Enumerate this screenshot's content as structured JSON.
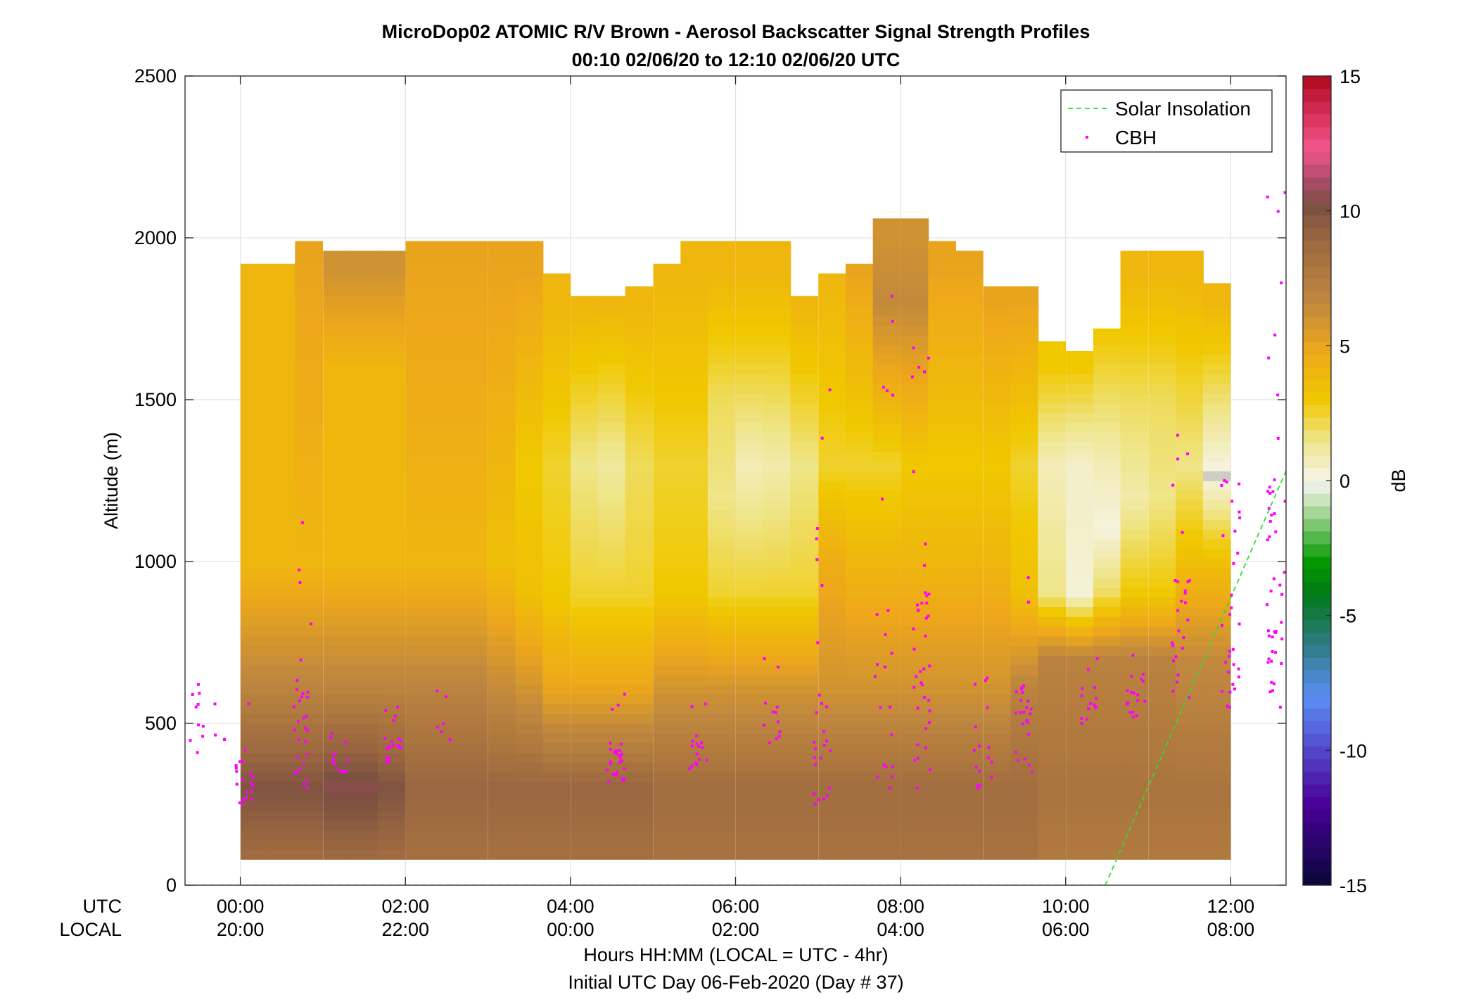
{
  "chart_data": {
    "type": "heatmap",
    "title": "MicroDop02 ATOMIC R/V Brown - Aerosol Backscatter Signal Strength Profiles",
    "subtitle": "00:10 02/06/20 to 12:10 02/06/20  UTC",
    "ylabel": "Altitude (m)",
    "xlabel": "Hours HH:MM  (LOCAL = UTC - 4hr)",
    "xlabel2": "Initial UTC Day 06-Feb-2020 (Day # 37)",
    "x_row_labels": [
      "UTC",
      "LOCAL"
    ],
    "ylim": [
      0,
      2500
    ],
    "xlim_hours_utc": [
      -0.67,
      12.67
    ],
    "yticks": [
      0,
      500,
      1000,
      1500,
      2000,
      2500
    ],
    "xticks_utc": [
      "00:00",
      "02:00",
      "04:00",
      "06:00",
      "08:00",
      "10:00",
      "12:00"
    ],
    "xticks_local": [
      "20:00",
      "22:00",
      "00:00",
      "02:00",
      "04:00",
      "06:00",
      "08:00"
    ],
    "grid": true,
    "legend_position": "top-right",
    "legend": [
      {
        "label": "Solar Insolation",
        "color": "#33dd33",
        "style": "dashed"
      },
      {
        "label": "CBH",
        "color": "#ff00ff",
        "style": "dot"
      }
    ],
    "colorbar": {
      "label": "dB",
      "range": [
        -15,
        15
      ],
      "ticks": [
        "15",
        "10",
        "5",
        "0",
        "-5",
        "-10",
        "-15"
      ]
    },
    "columns": [
      {
        "t": 0.17,
        "top": 1920,
        "profile": [
          [
            0,
            8
          ],
          [
            300,
            10
          ],
          [
            600,
            7
          ],
          [
            1000,
            4
          ],
          [
            1900,
            4
          ]
        ]
      },
      {
        "t": 0.5,
        "top": 1920,
        "profile": [
          [
            0,
            8
          ],
          [
            300,
            10
          ],
          [
            600,
            7
          ],
          [
            1000,
            4
          ],
          [
            1900,
            4
          ]
        ]
      },
      {
        "t": 0.83,
        "top": 1990,
        "profile": [
          [
            0,
            8
          ],
          [
            300,
            10
          ],
          [
            600,
            7
          ],
          [
            1000,
            4
          ],
          [
            1900,
            5
          ]
        ]
      },
      {
        "t": 1.17,
        "top": 1960,
        "profile": [
          [
            0,
            8
          ],
          [
            300,
            10.5
          ],
          [
            600,
            7
          ],
          [
            1000,
            4
          ],
          [
            1600,
            4
          ],
          [
            1900,
            6
          ]
        ]
      },
      {
        "t": 1.5,
        "top": 1960,
        "profile": [
          [
            0,
            8
          ],
          [
            300,
            10.5
          ],
          [
            600,
            7
          ],
          [
            1000,
            4
          ],
          [
            1600,
            4
          ],
          [
            1900,
            6
          ]
        ]
      },
      {
        "t": 1.83,
        "top": 1960,
        "profile": [
          [
            0,
            8
          ],
          [
            300,
            10
          ],
          [
            600,
            7
          ],
          [
            1000,
            4
          ],
          [
            1600,
            4
          ],
          [
            1900,
            6
          ]
        ]
      },
      {
        "t": 2.17,
        "top": 1990,
        "profile": [
          [
            0,
            8
          ],
          [
            300,
            9
          ],
          [
            600,
            7
          ],
          [
            1000,
            4
          ],
          [
            1900,
            5
          ]
        ]
      },
      {
        "t": 2.5,
        "top": 1990,
        "profile": [
          [
            0,
            8
          ],
          [
            300,
            9
          ],
          [
            600,
            7
          ],
          [
            1000,
            4
          ],
          [
            1900,
            5
          ]
        ]
      },
      {
        "t": 2.83,
        "top": 1990,
        "profile": [
          [
            0,
            8
          ],
          [
            300,
            9
          ],
          [
            600,
            7
          ],
          [
            1000,
            4
          ],
          [
            1900,
            5
          ]
        ]
      },
      {
        "t": 3.17,
        "top": 1990,
        "profile": [
          [
            0,
            8
          ],
          [
            300,
            9
          ],
          [
            600,
            6.5
          ],
          [
            1000,
            3.5
          ],
          [
            1900,
            5
          ]
        ]
      },
      {
        "t": 3.5,
        "top": 1990,
        "profile": [
          [
            0,
            8
          ],
          [
            300,
            9
          ],
          [
            600,
            6
          ],
          [
            900,
            3.5
          ],
          [
            1300,
            3
          ],
          [
            1900,
            5
          ]
        ]
      },
      {
        "t": 3.83,
        "top": 1890,
        "profile": [
          [
            0,
            8
          ],
          [
            300,
            9
          ],
          [
            600,
            5
          ],
          [
            900,
            3
          ],
          [
            1300,
            2.5
          ],
          [
            1800,
            4
          ]
        ]
      },
      {
        "t": 4.17,
        "top": 1820,
        "profile": [
          [
            0,
            8
          ],
          [
            300,
            9
          ],
          [
            600,
            5
          ],
          [
            900,
            2.5
          ],
          [
            1300,
            1.5
          ],
          [
            1800,
            4
          ]
        ]
      },
      {
        "t": 4.5,
        "top": 1820,
        "profile": [
          [
            0,
            8
          ],
          [
            300,
            9
          ],
          [
            600,
            5
          ],
          [
            900,
            2.5
          ],
          [
            1300,
            1.2
          ],
          [
            1800,
            4
          ]
        ]
      },
      {
        "t": 4.83,
        "top": 1850,
        "profile": [
          [
            0,
            8
          ],
          [
            300,
            9
          ],
          [
            600,
            5
          ],
          [
            900,
            2.5
          ],
          [
            1300,
            2
          ],
          [
            1800,
            4
          ]
        ]
      },
      {
        "t": 5.17,
        "top": 1920,
        "profile": [
          [
            0,
            8
          ],
          [
            300,
            8.5
          ],
          [
            600,
            6
          ],
          [
            900,
            3
          ],
          [
            1300,
            2.5
          ],
          [
            1900,
            4
          ]
        ]
      },
      {
        "t": 5.5,
        "top": 1990,
        "profile": [
          [
            0,
            8
          ],
          [
            300,
            8.5
          ],
          [
            600,
            6
          ],
          [
            900,
            3
          ],
          [
            1300,
            2.5
          ],
          [
            1900,
            4
          ]
        ]
      },
      {
        "t": 5.83,
        "top": 1990,
        "profile": [
          [
            0,
            8
          ],
          [
            300,
            8.5
          ],
          [
            600,
            6
          ],
          [
            900,
            2.5
          ],
          [
            1200,
            1.5
          ],
          [
            1500,
            2
          ],
          [
            1900,
            4
          ]
        ]
      },
      {
        "t": 6.17,
        "top": 1990,
        "profile": [
          [
            0,
            8
          ],
          [
            300,
            8.5
          ],
          [
            600,
            6
          ],
          [
            900,
            2.5
          ],
          [
            1300,
            0.8
          ],
          [
            1600,
            2.5
          ],
          [
            1900,
            4
          ]
        ]
      },
      {
        "t": 6.5,
        "top": 1990,
        "profile": [
          [
            0,
            8
          ],
          [
            300,
            8.5
          ],
          [
            600,
            6
          ],
          [
            900,
            2.5
          ],
          [
            1300,
            1
          ],
          [
            1600,
            2.5
          ],
          [
            1900,
            4
          ]
        ]
      },
      {
        "t": 6.83,
        "top": 1820,
        "profile": [
          [
            0,
            8
          ],
          [
            300,
            8.5
          ],
          [
            600,
            6
          ],
          [
            900,
            2.5
          ],
          [
            1300,
            1.5
          ],
          [
            1800,
            4
          ]
        ]
      },
      {
        "t": 7.17,
        "top": 1890,
        "profile": [
          [
            0,
            8
          ],
          [
            300,
            8.5
          ],
          [
            600,
            6
          ],
          [
            1000,
            4.5
          ],
          [
            1300,
            2.5
          ],
          [
            1900,
            4
          ]
        ]
      },
      {
        "t": 7.5,
        "top": 1920,
        "profile": [
          [
            0,
            8
          ],
          [
            300,
            8.5
          ],
          [
            600,
            6
          ],
          [
            1000,
            4
          ],
          [
            1300,
            2.5
          ],
          [
            1900,
            5
          ]
        ]
      },
      {
        "t": 7.83,
        "top": 2060,
        "profile": [
          [
            0,
            8
          ],
          [
            300,
            8.5
          ],
          [
            600,
            6
          ],
          [
            1000,
            4
          ],
          [
            1300,
            2.5
          ],
          [
            1800,
            6.5
          ],
          [
            2000,
            6
          ]
        ]
      },
      {
        "t": 8.17,
        "top": 2060,
        "profile": [
          [
            0,
            8
          ],
          [
            300,
            8.5
          ],
          [
            600,
            6
          ],
          [
            1000,
            4
          ],
          [
            1300,
            3
          ],
          [
            1800,
            6.5
          ],
          [
            2000,
            6
          ]
        ]
      },
      {
        "t": 8.5,
        "top": 1990,
        "profile": [
          [
            0,
            8
          ],
          [
            300,
            8.5
          ],
          [
            600,
            6
          ],
          [
            1000,
            4
          ],
          [
            1300,
            3
          ],
          [
            1900,
            5
          ]
        ]
      },
      {
        "t": 8.83,
        "top": 1960,
        "profile": [
          [
            0,
            8
          ],
          [
            300,
            8.5
          ],
          [
            600,
            6
          ],
          [
            1000,
            4
          ],
          [
            1300,
            3
          ],
          [
            1900,
            5
          ]
        ]
      },
      {
        "t": 9.17,
        "top": 1850,
        "profile": [
          [
            0,
            8
          ],
          [
            300,
            8.5
          ],
          [
            600,
            6
          ],
          [
            1000,
            4
          ],
          [
            1300,
            3
          ],
          [
            1800,
            5
          ]
        ]
      },
      {
        "t": 9.5,
        "top": 1850,
        "profile": [
          [
            0,
            8
          ],
          [
            300,
            8.5
          ],
          [
            600,
            7
          ],
          [
            900,
            3.5
          ],
          [
            1300,
            2.5
          ],
          [
            1800,
            5
          ]
        ]
      },
      {
        "t": 9.83,
        "top": 1680,
        "profile": [
          [
            0,
            7.5
          ],
          [
            300,
            8
          ],
          [
            700,
            7
          ],
          [
            900,
            1.5
          ],
          [
            1300,
            0.8
          ],
          [
            1600,
            3
          ]
        ]
      },
      {
        "t": 10.17,
        "top": 1650,
        "profile": [
          [
            0,
            7.5
          ],
          [
            300,
            8
          ],
          [
            700,
            7
          ],
          [
            900,
            0.3
          ],
          [
            1100,
            0.5
          ],
          [
            1300,
            0.5
          ],
          [
            1600,
            3
          ]
        ]
      },
      {
        "t": 10.5,
        "top": 1720,
        "profile": [
          [
            0,
            7.5
          ],
          [
            300,
            8
          ],
          [
            700,
            7
          ],
          [
            900,
            2
          ],
          [
            1100,
            0.2
          ],
          [
            1300,
            0.8
          ],
          [
            1700,
            3
          ]
        ]
      },
      {
        "t": 10.83,
        "top": 1960,
        "profile": [
          [
            0,
            7.5
          ],
          [
            300,
            8
          ],
          [
            700,
            7
          ],
          [
            900,
            3
          ],
          [
            1200,
            1
          ],
          [
            1500,
            2
          ],
          [
            1900,
            4
          ]
        ]
      },
      {
        "t": 11.17,
        "top": 1960,
        "profile": [
          [
            0,
            7.5
          ],
          [
            300,
            8
          ],
          [
            700,
            7
          ],
          [
            900,
            3
          ],
          [
            1200,
            1.5
          ],
          [
            1500,
            2
          ],
          [
            1900,
            4
          ]
        ]
      },
      {
        "t": 11.5,
        "top": 1960,
        "profile": [
          [
            0,
            7.5
          ],
          [
            300,
            8
          ],
          [
            700,
            6.5
          ],
          [
            1000,
            3.5
          ],
          [
            1300,
            1.5
          ],
          [
            1900,
            4
          ]
        ]
      },
      {
        "t": 11.83,
        "top": 1860,
        "profile": [
          [
            0,
            7.5
          ],
          [
            300,
            8
          ],
          [
            700,
            6.5
          ],
          [
            1000,
            3.5
          ],
          [
            1270,
            0
          ],
          [
            1400,
            1
          ],
          [
            1800,
            4
          ]
        ]
      }
    ],
    "cbh_clusters": [
      {
        "t": -0.55,
        "alt": [
          410,
          620
        ],
        "n": 10
      },
      {
        "t": -0.22,
        "alt": [
          450,
          560
        ],
        "n": 4
      },
      {
        "t": 0.05,
        "alt": [
          250,
          560
        ],
        "n": 20
      },
      {
        "t": 0.75,
        "alt": [
          300,
          1120
        ],
        "n": 30
      },
      {
        "t": 1.2,
        "alt": [
          350,
          470
        ],
        "n": 14
      },
      {
        "t": 1.85,
        "alt": [
          380,
          550
        ],
        "n": 20
      },
      {
        "t": 2.45,
        "alt": [
          450,
          600
        ],
        "n": 6
      },
      {
        "t": 4.55,
        "alt": [
          320,
          590
        ],
        "n": 28
      },
      {
        "t": 5.55,
        "alt": [
          360,
          560
        ],
        "n": 16
      },
      {
        "t": 6.45,
        "alt": [
          440,
          700
        ],
        "n": 12
      },
      {
        "t": 7.05,
        "alt": [
          250,
          1530
        ],
        "n": 26
      },
      {
        "t": 7.8,
        "alt": [
          300,
          1820
        ],
        "n": 22
      },
      {
        "t": 8.25,
        "alt": [
          300,
          1660
        ],
        "n": 40
      },
      {
        "t": 9.0,
        "alt": [
          300,
          640
        ],
        "n": 16
      },
      {
        "t": 9.5,
        "alt": [
          350,
          950
        ],
        "n": 24
      },
      {
        "t": 10.3,
        "alt": [
          500,
          700
        ],
        "n": 14
      },
      {
        "t": 10.85,
        "alt": [
          520,
          710
        ],
        "n": 18
      },
      {
        "t": 11.4,
        "alt": [
          580,
          1390
        ],
        "n": 26
      },
      {
        "t": 12.0,
        "alt": [
          550,
          1250
        ],
        "n": 30
      },
      {
        "t": 12.55,
        "alt": [
          550,
          2140
        ],
        "n": 46
      }
    ],
    "solar_insolation": {
      "x_hours_utc": [
        -0.67,
        10.48,
        12.67
      ],
      "y_m": [
        0,
        0,
        1280
      ]
    }
  }
}
